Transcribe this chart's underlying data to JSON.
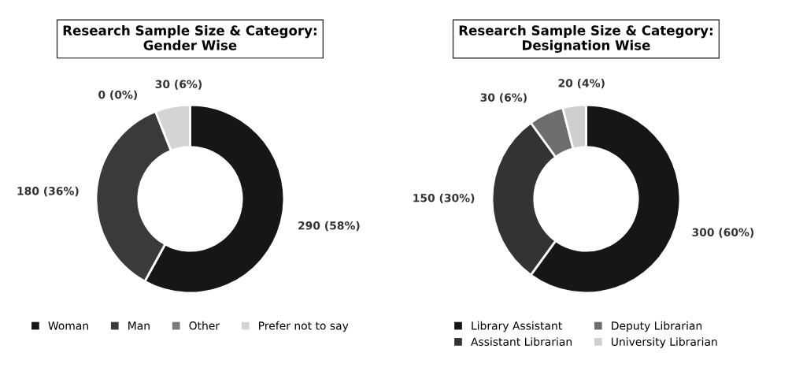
{
  "chart_data": [
    {
      "type": "donut",
      "title": "Research Sample Size & Category:\nGender Wise",
      "categories": [
        "Woman",
        "Man",
        "Other",
        "Prefer not to say"
      ],
      "values": [
        290,
        180,
        0,
        30
      ],
      "colors": [
        "#161616",
        "#3a3a3a",
        "#7a7a7a",
        "#d4d4d4"
      ],
      "value_labels": [
        "290 (58%)",
        "180 (36%)",
        "0 (0%)",
        "30 (6%)"
      ],
      "legend": "bottom"
    },
    {
      "type": "donut",
      "title": "Research Sample Size & Category:\nDesignation Wise",
      "categories": [
        "Library Assistant",
        "Assistant Librarian",
        "Deputy Librarian",
        "University Librarian"
      ],
      "values": [
        300,
        150,
        30,
        20
      ],
      "colors": [
        "#161616",
        "#333333",
        "#6e6e6e",
        "#cfcfcf"
      ],
      "value_labels": [
        "300 (60%)",
        "150 (30%)",
        "30 (6%)",
        "20 (4%)"
      ],
      "legend": "bottom"
    }
  ]
}
